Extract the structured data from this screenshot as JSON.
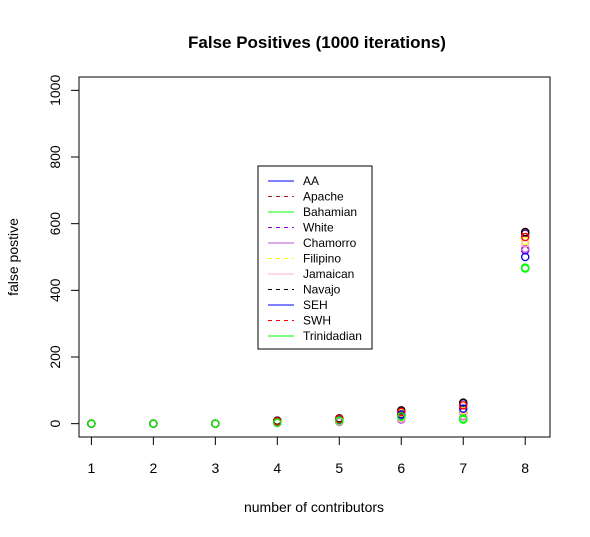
{
  "chart_data": {
    "type": "scatter",
    "title": "False Positives  (1000 iterations)",
    "xlabel": "number of contributors",
    "ylabel": "false postive",
    "xlim": [
      0.8,
      8.4
    ],
    "ylim": [
      -40,
      1040
    ],
    "x_ticks": [
      1,
      2,
      3,
      4,
      5,
      6,
      7,
      8
    ],
    "y_ticks": [
      0,
      200,
      400,
      600,
      800,
      1000
    ],
    "legend_position": "center",
    "grid": false,
    "series": [
      {
        "name": "AA",
        "color": "#0000ff",
        "line_style": "solid",
        "x": [
          1,
          2,
          3,
          4,
          5,
          6,
          7,
          8
        ],
        "y": [
          0,
          0,
          0,
          5,
          14,
          37,
          61,
          570
        ]
      },
      {
        "name": "Apache",
        "color": "#b22222",
        "line_style": "dashed",
        "x": [
          1,
          2,
          3,
          4,
          5,
          6,
          7,
          8
        ],
        "y": [
          0,
          0,
          0,
          8,
          15,
          38,
          62,
          572
        ]
      },
      {
        "name": "Bahamian",
        "color": "#00ff00",
        "line_style": "solid",
        "x": [
          1,
          2,
          3,
          4,
          5,
          6,
          7,
          8
        ],
        "y": [
          0,
          0,
          0,
          3,
          8,
          20,
          12,
          465
        ]
      },
      {
        "name": "White",
        "color": "#9400d3",
        "line_style": "dashed",
        "x": [
          1,
          2,
          3,
          4,
          5,
          6,
          7,
          8
        ],
        "y": [
          0,
          0,
          0,
          4,
          10,
          25,
          35,
          520
        ]
      },
      {
        "name": "Chamorro",
        "color": "#ba55d3",
        "line_style": "solid",
        "x": [
          1,
          2,
          3,
          4,
          5,
          6,
          7,
          8
        ],
        "y": [
          0,
          0,
          0,
          2,
          5,
          12,
          22,
          525
        ]
      },
      {
        "name": "Filipino",
        "color": "#ffff00",
        "line_style": "dashed",
        "x": [
          1,
          2,
          3,
          4,
          5,
          6,
          7,
          8
        ],
        "y": [
          0,
          0,
          0,
          6,
          12,
          30,
          40,
          548
        ]
      },
      {
        "name": "Jamaican",
        "color": "#ffb6c1",
        "line_style": "solid",
        "x": [
          1,
          2,
          3,
          4,
          5,
          6,
          7,
          8
        ],
        "y": [
          0,
          0,
          0,
          3,
          7,
          16,
          25,
          540
        ]
      },
      {
        "name": "Navajo",
        "color": "#000000",
        "line_style": "dashed",
        "x": [
          1,
          2,
          3,
          4,
          5,
          6,
          7,
          8
        ],
        "y": [
          0,
          0,
          0,
          9,
          16,
          40,
          63,
          575
        ]
      },
      {
        "name": "SEH",
        "color": "#0000ff",
        "line_style": "solid",
        "x": [
          1,
          2,
          3,
          4,
          5,
          6,
          7,
          8
        ],
        "y": [
          0,
          0,
          0,
          4,
          11,
          28,
          45,
          500
        ]
      },
      {
        "name": "SWH",
        "color": "#ff0000",
        "line_style": "dashed",
        "x": [
          1,
          2,
          3,
          4,
          5,
          6,
          7,
          8
        ],
        "y": [
          0,
          0,
          0,
          7,
          14,
          35,
          55,
          560
        ]
      },
      {
        "name": "Trinidadian",
        "color": "#00ff00",
        "line_style": "solid",
        "x": [
          1,
          2,
          3,
          4,
          5,
          6,
          7,
          8
        ],
        "y": [
          0,
          0,
          0,
          3,
          9,
          22,
          15,
          468
        ]
      }
    ]
  }
}
